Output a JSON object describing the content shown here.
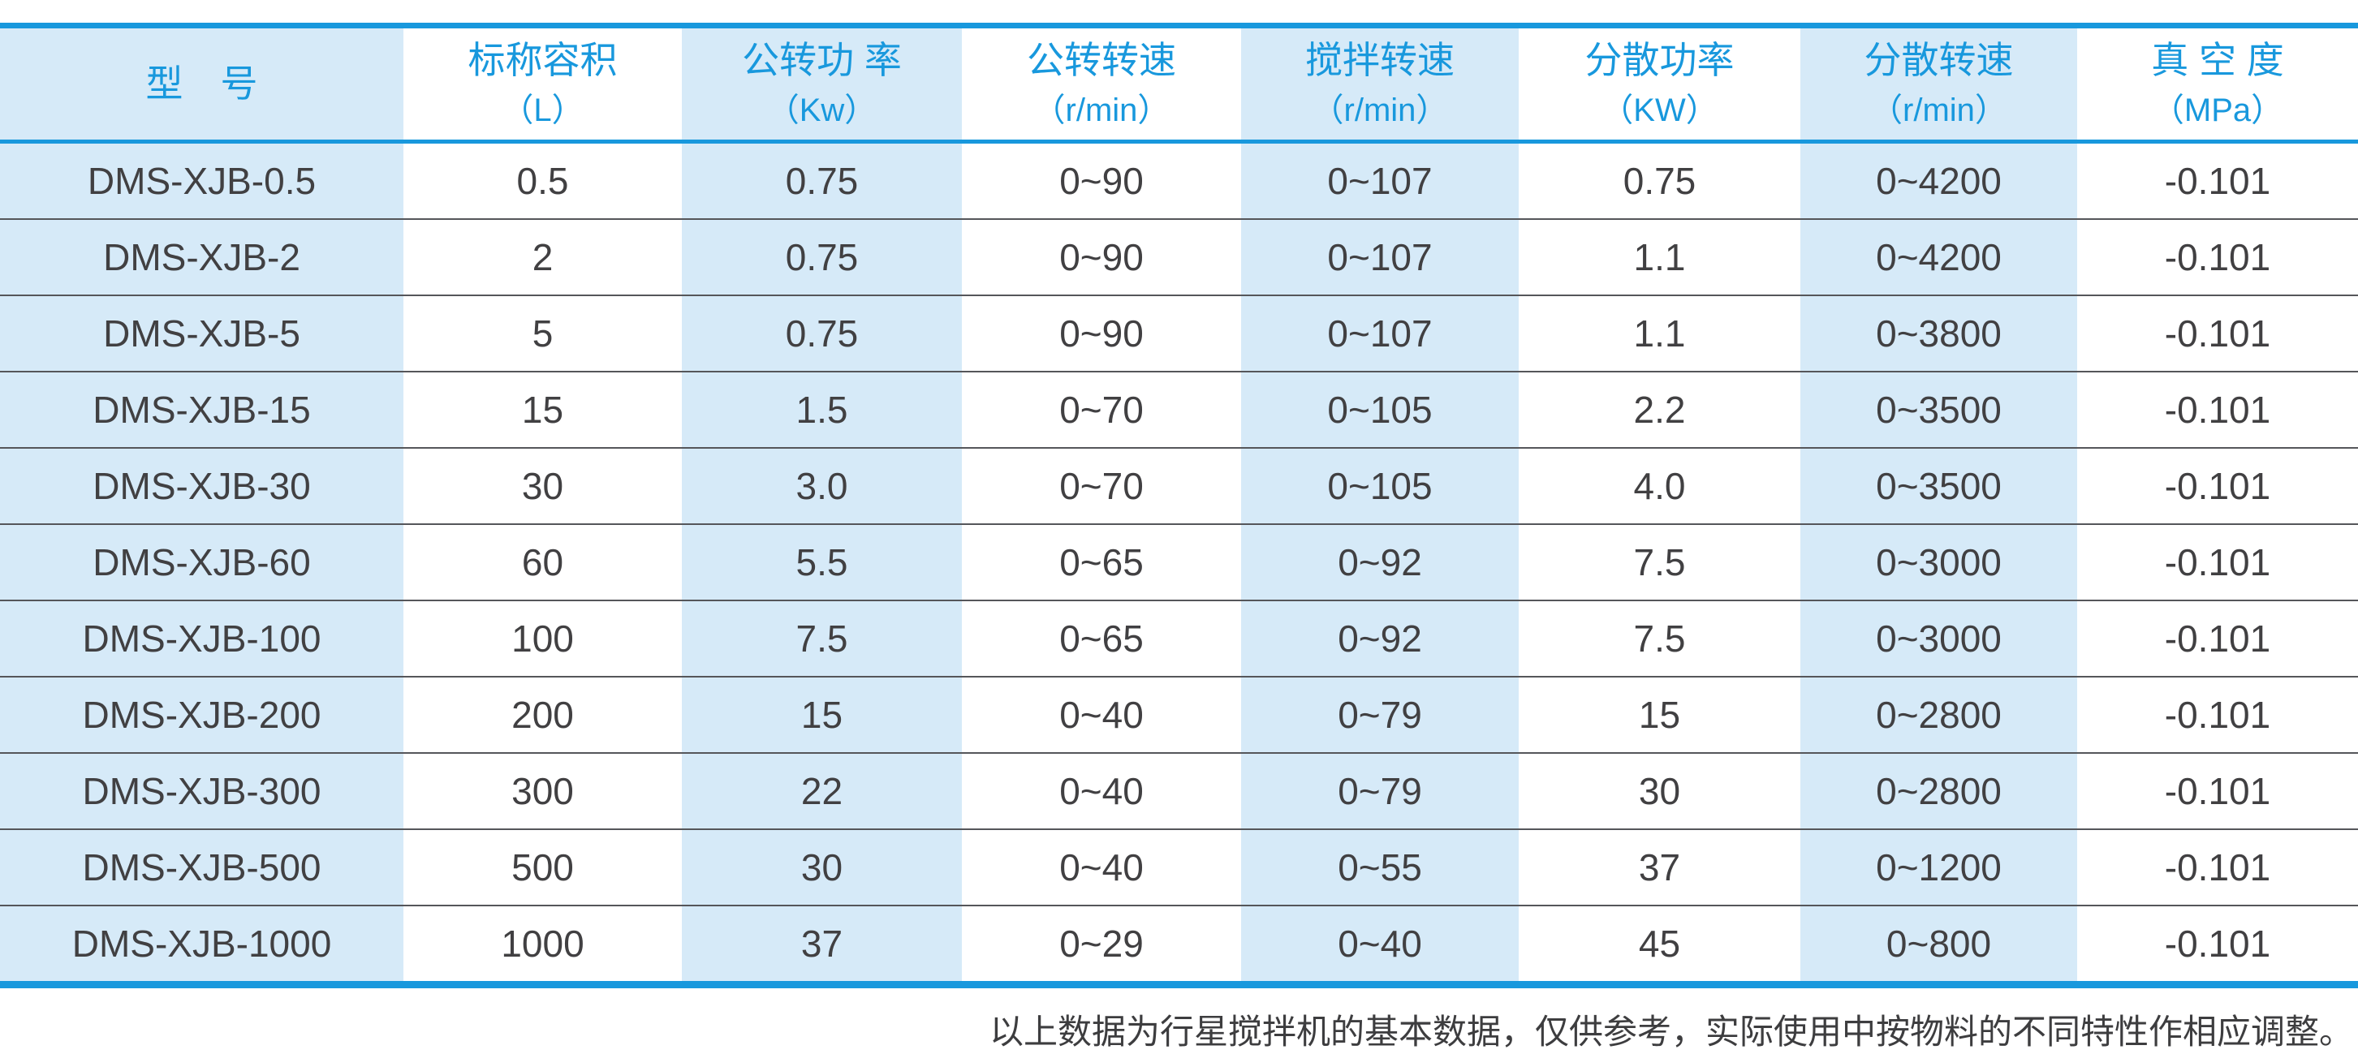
{
  "table": {
    "header": {
      "columns": [
        {
          "label": "型　号",
          "unit": ""
        },
        {
          "label": "标称容积",
          "unit": "（L）"
        },
        {
          "label": "公转功 率",
          "unit": "（Kw）"
        },
        {
          "label": "公转转速",
          "unit": "（r/min）"
        },
        {
          "label": "搅拌转速",
          "unit": "（r/min）"
        },
        {
          "label": "分散功率",
          "unit": "（KW）"
        },
        {
          "label": "分散转速",
          "unit": "（r/min）"
        },
        {
          "label": "真 空 度",
          "unit": "（MPa）"
        }
      ]
    },
    "rows": [
      {
        "cells": [
          "DMS-XJB-0.5",
          "0.5",
          "0.75",
          "0~90",
          "0~107",
          "0.75",
          "0~4200",
          "-0.101"
        ]
      },
      {
        "cells": [
          "DMS-XJB-2",
          "2",
          "0.75",
          "0~90",
          "0~107",
          "1.1",
          "0~4200",
          "-0.101"
        ]
      },
      {
        "cells": [
          "DMS-XJB-5",
          "5",
          "0.75",
          "0~90",
          "0~107",
          "1.1",
          "0~3800",
          "-0.101"
        ]
      },
      {
        "cells": [
          "DMS-XJB-15",
          "15",
          "1.5",
          "0~70",
          "0~105",
          "2.2",
          "0~3500",
          "-0.101"
        ]
      },
      {
        "cells": [
          "DMS-XJB-30",
          "30",
          "3.0",
          "0~70",
          "0~105",
          "4.0",
          "0~3500",
          "-0.101"
        ]
      },
      {
        "cells": [
          "DMS-XJB-60",
          "60",
          "5.5",
          "0~65",
          "0~92",
          "7.5",
          "0~3000",
          "-0.101"
        ]
      },
      {
        "cells": [
          "DMS-XJB-100",
          "100",
          "7.5",
          "0~65",
          "0~92",
          "7.5",
          "0~3000",
          "-0.101"
        ]
      },
      {
        "cells": [
          "DMS-XJB-200",
          "200",
          "15",
          "0~40",
          "0~79",
          "15",
          "0~2800",
          "-0.101"
        ]
      },
      {
        "cells": [
          "DMS-XJB-300",
          "300",
          "22",
          "0~40",
          "0~79",
          "30",
          "0~2800",
          "-0.101"
        ]
      },
      {
        "cells": [
          "DMS-XJB-500",
          "500",
          "30",
          "0~40",
          "0~55",
          "37",
          "0~1200",
          "-0.101"
        ]
      },
      {
        "cells": [
          "DMS-XJB-1000",
          "1000",
          "37",
          "0~29",
          "0~40",
          "45",
          "0~800",
          "-0.101"
        ]
      }
    ]
  },
  "footnote": "以上数据为行星搅拌机的基本数据，仅供参考，实际使用中按物料的不同特性作相应调整。",
  "colors": {
    "accent_blue": "#1898dd",
    "stripe_light_blue": "#d6eaf8",
    "body_text": "#414042",
    "row_separator": "#55565a",
    "footnote_text": "#3d3d3f"
  }
}
